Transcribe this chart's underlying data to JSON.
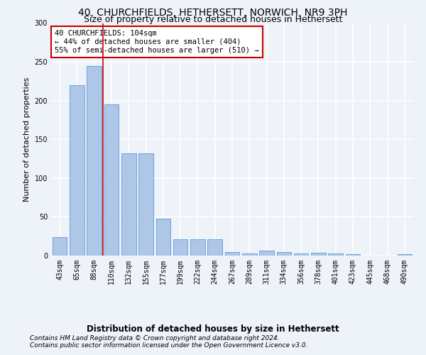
{
  "title1": "40, CHURCHFIELDS, HETHERSETT, NORWICH, NR9 3PH",
  "title2": "Size of property relative to detached houses in Hethersett",
  "xlabel": "Distribution of detached houses by size in Hethersett",
  "ylabel": "Number of detached properties",
  "categories": [
    "43sqm",
    "65sqm",
    "88sqm",
    "110sqm",
    "132sqm",
    "155sqm",
    "177sqm",
    "199sqm",
    "222sqm",
    "244sqm",
    "267sqm",
    "289sqm",
    "311sqm",
    "334sqm",
    "356sqm",
    "378sqm",
    "401sqm",
    "423sqm",
    "445sqm",
    "468sqm",
    "490sqm"
  ],
  "values": [
    24,
    220,
    245,
    195,
    132,
    132,
    48,
    21,
    21,
    21,
    5,
    3,
    6,
    5,
    3,
    4,
    3,
    2,
    0,
    0,
    2
  ],
  "bar_color": "#aec6e8",
  "bar_edgecolor": "#5b9bd5",
  "vline_x": 2.5,
  "vline_color": "#cc0000",
  "annotation_text": "40 CHURCHFIELDS: 104sqm\n← 44% of detached houses are smaller (404)\n55% of semi-detached houses are larger (510) →",
  "annotation_box_color": "#ffffff",
  "annotation_box_edgecolor": "#cc0000",
  "ylim": [
    0,
    300
  ],
  "yticks": [
    0,
    50,
    100,
    150,
    200,
    250,
    300
  ],
  "footer1": "Contains HM Land Registry data © Crown copyright and database right 2024.",
  "footer2": "Contains public sector information licensed under the Open Government Licence v3.0.",
  "background_color": "#eef2f9",
  "grid_color": "#ffffff",
  "title1_fontsize": 10,
  "title2_fontsize": 9,
  "xlabel_fontsize": 8.5,
  "ylabel_fontsize": 8,
  "tick_fontsize": 7,
  "annotation_fontsize": 7.5,
  "footer_fontsize": 6.5
}
